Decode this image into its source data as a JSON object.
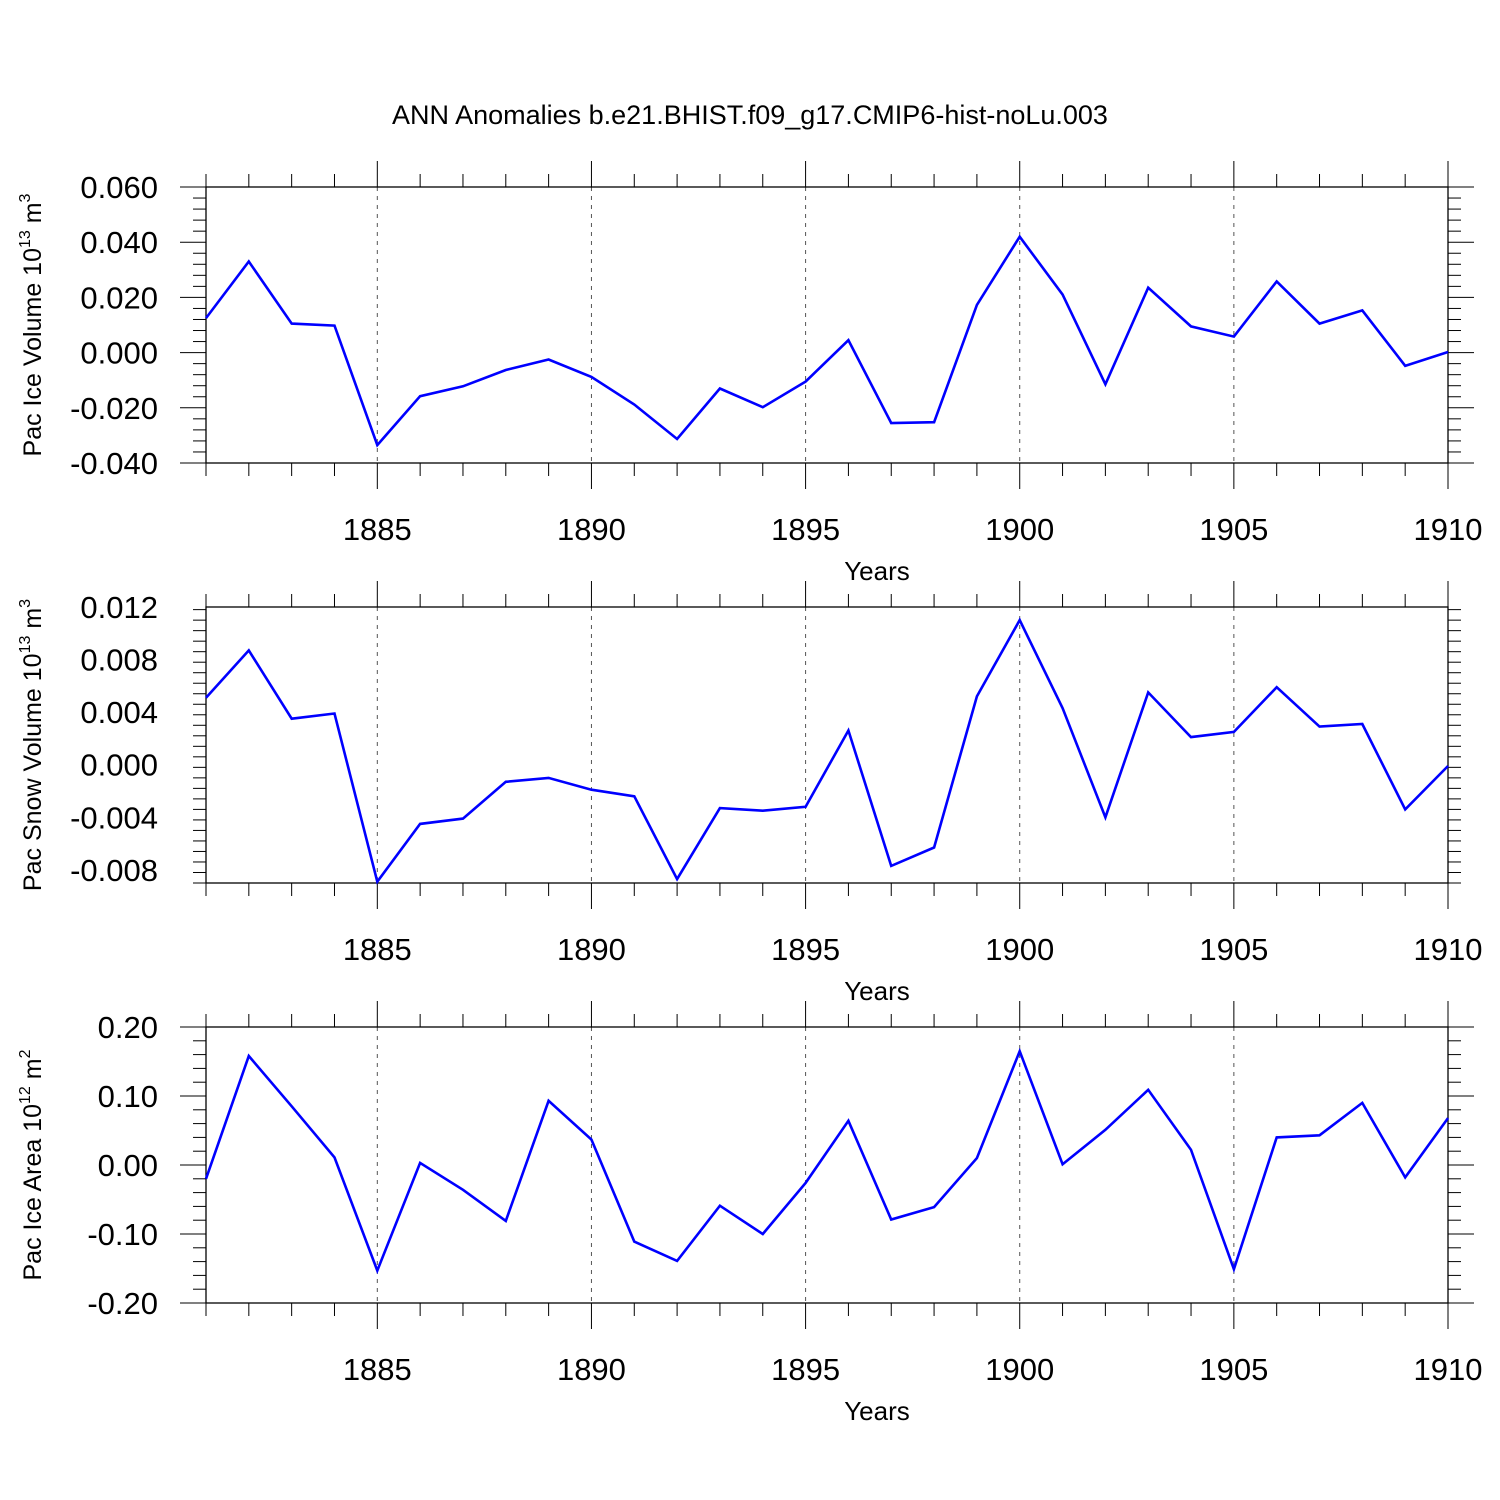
{
  "title": "ANN Anomalies b.e21.BHIST.f09_g17.CMIP6-hist-noLu.003",
  "colors": {
    "line": "#0000ff",
    "axis": "#000000",
    "grid": "#555555"
  },
  "chart_data": [
    {
      "type": "line",
      "ylabel_base": "Pac Ice Volume 10",
      "ylabel_exp": "13",
      "ylabel_unit": " m",
      "ylabel_unit_exp": "3",
      "xlabel": "Years",
      "xlim": [
        1881,
        1910
      ],
      "ylim": [
        -0.04,
        0.06
      ],
      "major_yticks": [
        "0.060",
        "0.040",
        "0.020",
        "0.000",
        "-0.020",
        "-0.040"
      ],
      "major_ytick_values": [
        0.06,
        0.04,
        0.02,
        0.0,
        -0.02,
        -0.04
      ],
      "xticks": [
        "1885",
        "1890",
        "1895",
        "1900",
        "1905",
        "1910"
      ],
      "xtick_values": [
        1885,
        1890,
        1895,
        1900,
        1905,
        1910
      ],
      "x": [
        1881,
        1882,
        1883,
        1884,
        1885,
        1886,
        1887,
        1888,
        1889,
        1890,
        1891,
        1892,
        1893,
        1894,
        1895,
        1896,
        1897,
        1898,
        1899,
        1900,
        1901,
        1902,
        1903,
        1904,
        1905,
        1906,
        1907,
        1908,
        1909,
        1910
      ],
      "values": [
        0.0125,
        0.033,
        0.0105,
        0.0098,
        -0.0335,
        -0.0158,
        -0.0122,
        -0.0063,
        -0.0025,
        -0.0088,
        -0.0188,
        -0.0313,
        -0.013,
        -0.0198,
        -0.0105,
        0.0045,
        -0.0255,
        -0.0252,
        0.0173,
        0.042,
        0.021,
        -0.0115,
        0.0235,
        0.0095,
        0.0058,
        0.0258,
        0.0105,
        0.0153,
        -0.0048,
        0.0002
      ]
    },
    {
      "type": "line",
      "ylabel_base": "Pac Snow Volume 10",
      "ylabel_exp": "13",
      "ylabel_unit": " m",
      "ylabel_unit_exp": "3",
      "xlabel": "Years",
      "xlim": [
        1881,
        1910
      ],
      "ylim": [
        -0.009,
        0.012
      ],
      "major_yticks": [
        "0.012",
        "0.008",
        "0.004",
        "0.000",
        "-0.004",
        "-0.008"
      ],
      "major_ytick_values": [
        0.012,
        0.008,
        0.004,
        0.0,
        -0.004,
        -0.008
      ],
      "xticks": [
        "1885",
        "1890",
        "1895",
        "1900",
        "1905",
        "1910"
      ],
      "xtick_values": [
        1885,
        1890,
        1895,
        1900,
        1905,
        1910
      ],
      "x": [
        1881,
        1882,
        1883,
        1884,
        1885,
        1886,
        1887,
        1888,
        1889,
        1890,
        1891,
        1892,
        1893,
        1894,
        1895,
        1896,
        1897,
        1898,
        1899,
        1900,
        1901,
        1902,
        1903,
        1904,
        1905,
        1906,
        1907,
        1908,
        1909,
        1910
      ],
      "values": [
        0.0051,
        0.0087,
        0.0035,
        0.0039,
        -0.0089,
        -0.0045,
        -0.0041,
        -0.0013,
        -0.001,
        -0.0019,
        -0.0024,
        -0.0087,
        -0.0033,
        -0.0035,
        -0.0032,
        0.0026,
        -0.0077,
        -0.0063,
        0.0052,
        0.011,
        0.0043,
        -0.004,
        0.0055,
        0.0021,
        0.0025,
        0.0059,
        0.0029,
        0.0031,
        -0.0034,
        -0.0001
      ]
    },
    {
      "type": "line",
      "ylabel_base": "Pac Ice Area 10",
      "ylabel_exp": "12",
      "ylabel_unit": " m",
      "ylabel_unit_exp": "2",
      "xlabel": "Years",
      "xlim": [
        1881,
        1910
      ],
      "ylim": [
        -0.2,
        0.2
      ],
      "major_yticks": [
        "0.20",
        "0.10",
        "0.00",
        "-0.10",
        "-0.20"
      ],
      "major_ytick_values": [
        0.2,
        0.1,
        0.0,
        -0.1,
        -0.2
      ],
      "xticks": [
        "1885",
        "1890",
        "1895",
        "1900",
        "1905",
        "1910"
      ],
      "xtick_values": [
        1885,
        1890,
        1895,
        1900,
        1905,
        1910
      ],
      "x": [
        1881,
        1882,
        1883,
        1884,
        1885,
        1886,
        1887,
        1888,
        1889,
        1890,
        1891,
        1892,
        1893,
        1894,
        1895,
        1896,
        1897,
        1898,
        1899,
        1900,
        1901,
        1902,
        1903,
        1904,
        1905,
        1906,
        1907,
        1908,
        1909,
        1910
      ],
      "values": [
        -0.02,
        0.158,
        0.085,
        0.011,
        -0.153,
        0.003,
        -0.036,
        -0.081,
        0.093,
        0.037,
        -0.111,
        -0.139,
        -0.059,
        -0.1,
        -0.026,
        0.064,
        -0.079,
        -0.061,
        0.01,
        0.165,
        0.001,
        0.051,
        0.109,
        0.022,
        -0.151,
        0.04,
        0.043,
        0.09,
        -0.018,
        0.068
      ]
    }
  ]
}
